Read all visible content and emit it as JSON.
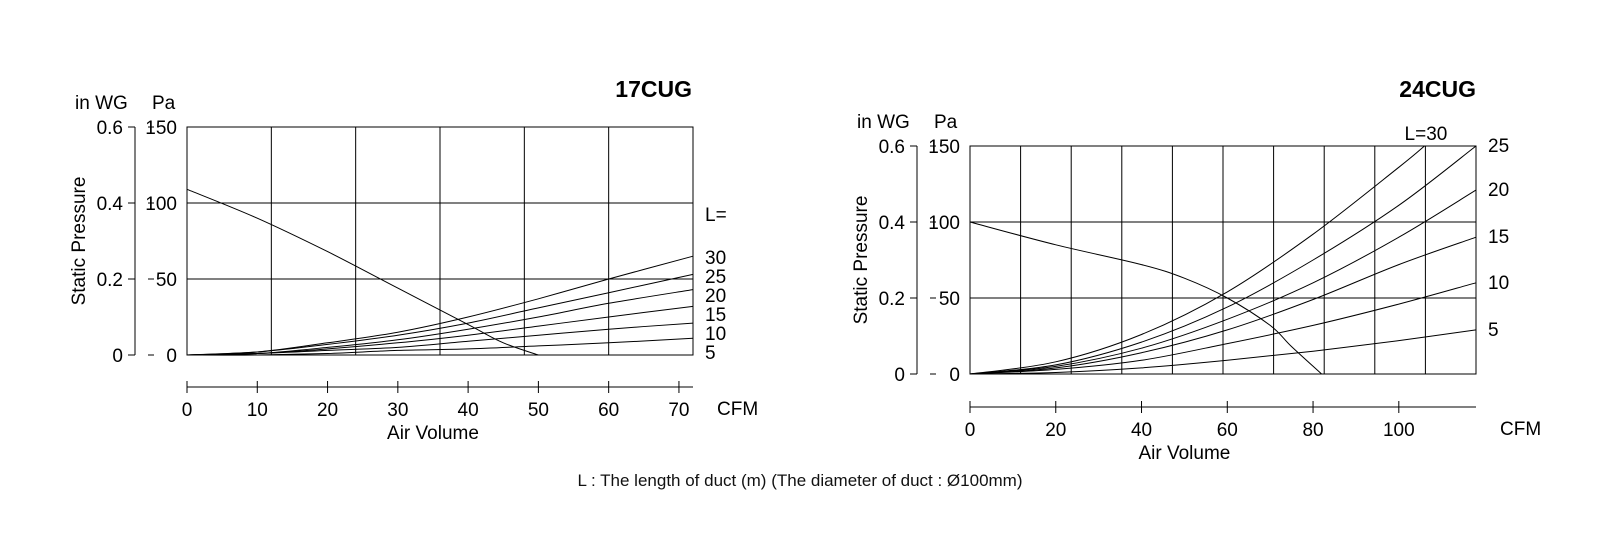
{
  "caption": "L : The length of duct (m) (The diameter of duct : Ø100mm)",
  "chart_data": [
    {
      "type": "line",
      "title": "17CUG",
      "xlabel": "Air Volume",
      "x_unit": "CFM",
      "ylabel": "Static Pressure",
      "y_unit_inwg": "in WG",
      "y_unit_pa": "Pa",
      "xlim": [
        0,
        72
      ],
      "ylim": [
        0,
        150
      ],
      "x_ticks": [
        "0",
        "10",
        "20",
        "30",
        "40",
        "50",
        "60",
        "70"
      ],
      "x_tick_values": [
        0,
        10,
        20,
        30,
        40,
        50,
        60,
        70
      ],
      "y_ticks_pa": [
        "0",
        "50",
        "100",
        "150"
      ],
      "y_ticks_inwg": [
        "0",
        "0.2",
        "0.4",
        "0.6"
      ],
      "y_tick_values": [
        0,
        50,
        100,
        150
      ],
      "grid": true,
      "series_label_prefix": "L=",
      "fan_curve": {
        "x": [
          0,
          10,
          20,
          30,
          40,
          45,
          50
        ],
        "y": [
          109,
          90,
          68,
          44,
          20,
          8,
          0
        ]
      },
      "series": [
        {
          "name": "30",
          "x": [
            0,
            10,
            20,
            30,
            40,
            50,
            60,
            72
          ],
          "y": [
            0,
            2,
            8,
            15,
            25,
            37,
            50,
            65
          ]
        },
        {
          "name": "25",
          "x": [
            0,
            10,
            20,
            30,
            40,
            50,
            60,
            72
          ],
          "y": [
            0,
            2,
            7,
            13,
            21,
            31,
            41,
            53
          ]
        },
        {
          "name": "20",
          "x": [
            0,
            10,
            20,
            30,
            40,
            50,
            60,
            72
          ],
          "y": [
            0,
            1,
            5,
            10,
            17,
            25,
            34,
            43
          ]
        },
        {
          "name": "15",
          "x": [
            0,
            10,
            20,
            30,
            40,
            50,
            60,
            72
          ],
          "y": [
            0,
            1,
            4,
            8,
            13,
            19,
            25,
            32
          ]
        },
        {
          "name": "10",
          "x": [
            0,
            10,
            20,
            30,
            40,
            50,
            60,
            72
          ],
          "y": [
            0,
            1,
            3,
            5,
            9,
            13,
            17,
            21
          ]
        },
        {
          "name": "5",
          "x": [
            0,
            10,
            20,
            30,
            40,
            50,
            60,
            72
          ],
          "y": [
            0,
            0,
            1,
            3,
            4,
            6,
            8,
            11
          ]
        }
      ]
    },
    {
      "type": "line",
      "title": "24CUG",
      "xlabel": "Air Volume",
      "x_unit": "CFM",
      "ylabel": "Static Pressure",
      "y_unit_inwg": "in WG",
      "y_unit_pa": "Pa",
      "xlim": [
        0,
        118
      ],
      "ylim": [
        0,
        150
      ],
      "x_ticks": [
        "0",
        "20",
        "40",
        "60",
        "80",
        "100"
      ],
      "x_tick_values": [
        0,
        20,
        40,
        60,
        80,
        100
      ],
      "y_ticks_pa": [
        "0",
        "50",
        "100",
        "150"
      ],
      "y_ticks_inwg": [
        "0",
        "0.2",
        "0.4",
        "0.6"
      ],
      "y_tick_values": [
        0,
        50,
        100,
        150
      ],
      "grid": true,
      "series_label_prefix": "L=",
      "fan_curve": {
        "x": [
          0,
          20,
          40,
          50,
          60,
          70,
          75,
          82
        ],
        "y": [
          100,
          85,
          72,
          63,
          50,
          32,
          18,
          0
        ]
      },
      "series": [
        {
          "name": "30",
          "x": [
            0,
            20,
            40,
            60,
            80,
            100,
            106
          ],
          "y": [
            0,
            8,
            26,
            54,
            92,
            136,
            150
          ]
        },
        {
          "name": "25",
          "x": [
            0,
            20,
            40,
            60,
            80,
            100,
            118
          ],
          "y": [
            0,
            6,
            21,
            44,
            75,
            111,
            150
          ]
        },
        {
          "name": "20",
          "x": [
            0,
            20,
            40,
            60,
            80,
            100,
            118
          ],
          "y": [
            0,
            5,
            17,
            36,
            60,
            90,
            121
          ]
        },
        {
          "name": "15",
          "x": [
            0,
            20,
            40,
            60,
            80,
            100,
            118
          ],
          "y": [
            0,
            4,
            14,
            29,
            49,
            72,
            90
          ]
        },
        {
          "name": "10",
          "x": [
            0,
            20,
            40,
            60,
            80,
            100,
            118
          ],
          "y": [
            0,
            3,
            9,
            20,
            32,
            46,
            60
          ]
        },
        {
          "name": "5",
          "x": [
            0,
            20,
            40,
            60,
            80,
            100,
            118
          ],
          "y": [
            0,
            1,
            4,
            9,
            15,
            22,
            29
          ]
        }
      ]
    }
  ]
}
